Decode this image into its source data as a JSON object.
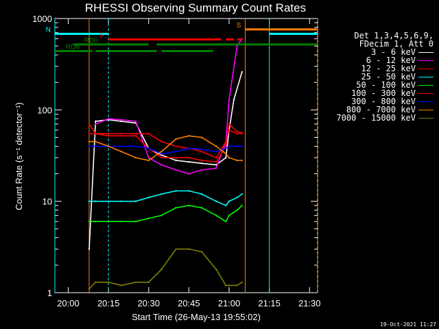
{
  "chart_data": {
    "type": "line",
    "title": "RHESSI Observing Summary Count Rates",
    "xlabel": "Start Time (26-May-13 19:55:02)",
    "ylabel": "Count Rate (s⁻¹ detector⁻¹)",
    "xlim": [
      19.917,
      21.55
    ],
    "ylim": [
      1,
      1000
    ],
    "yscale": "log",
    "x_ticks": [
      {
        "t": 20.0,
        "label": "20:00"
      },
      {
        "t": 20.25,
        "label": "20:15"
      },
      {
        "t": 20.5,
        "label": "20:30"
      },
      {
        "t": 20.75,
        "label": "20:45"
      },
      {
        "t": 21.0,
        "label": "21:00"
      },
      {
        "t": 21.25,
        "label": "21:15"
      },
      {
        "t": 21.5,
        "label": "21:30"
      }
    ],
    "y_ticks": [
      {
        "v": 1,
        "label": "1"
      },
      {
        "v": 10,
        "label": "10"
      },
      {
        "v": 100,
        "label": "100"
      },
      {
        "v": 1000,
        "label": "1000"
      }
    ],
    "legend_header": [
      "Det 1,3,4,5,6,9,",
      "FDecim 1, Att 0"
    ],
    "series": [
      {
        "name": "3 - 6 keV",
        "color": "#ffffff",
        "points": [
          [
            20.13,
            3.0
          ],
          [
            20.17,
            75
          ],
          [
            20.25,
            78
          ],
          [
            20.33,
            75
          ],
          [
            20.42,
            72
          ],
          [
            20.5,
            38
          ],
          [
            20.58,
            32
          ],
          [
            20.67,
            28
          ],
          [
            20.75,
            27
          ],
          [
            20.83,
            26
          ],
          [
            20.92,
            25
          ],
          [
            20.98,
            30
          ],
          [
            21.0,
            60
          ],
          [
            21.03,
            130
          ],
          [
            21.08,
            260
          ]
        ]
      },
      {
        "name": "6 - 12 keV",
        "color": "#ff00ff",
        "points": [
          [
            20.17,
            70
          ],
          [
            20.25,
            80
          ],
          [
            20.33,
            78
          ],
          [
            20.42,
            75
          ],
          [
            20.5,
            30
          ],
          [
            20.58,
            25
          ],
          [
            20.67,
            22
          ],
          [
            20.75,
            20
          ],
          [
            20.83,
            22
          ],
          [
            20.92,
            23
          ],
          [
            20.98,
            45
          ],
          [
            21.0,
            130
          ],
          [
            21.05,
            500
          ],
          [
            21.08,
            600
          ]
        ]
      },
      {
        "name": "12 - 25 keV",
        "color": "#ff0000",
        "points": [
          [
            20.13,
            70
          ],
          [
            20.17,
            55
          ],
          [
            20.25,
            52
          ],
          [
            20.33,
            52
          ],
          [
            20.42,
            52
          ],
          [
            20.5,
            38
          ],
          [
            20.58,
            30
          ],
          [
            20.67,
            30
          ],
          [
            20.75,
            30
          ],
          [
            20.83,
            28
          ],
          [
            20.92,
            27
          ],
          [
            20.98,
            40
          ],
          [
            21.0,
            70
          ],
          [
            21.05,
            58
          ],
          [
            21.08,
            56
          ]
        ]
      },
      {
        "name": "25 - 50 keV",
        "color": "#00ffff",
        "points": [
          [
            20.13,
            10
          ],
          [
            20.17,
            10
          ],
          [
            20.25,
            10
          ],
          [
            20.33,
            10
          ],
          [
            20.42,
            10
          ],
          [
            20.5,
            11
          ],
          [
            20.58,
            12
          ],
          [
            20.67,
            13
          ],
          [
            20.75,
            13
          ],
          [
            20.83,
            12
          ],
          [
            20.92,
            10
          ],
          [
            20.98,
            9
          ],
          [
            21.0,
            10
          ],
          [
            21.05,
            11
          ],
          [
            21.08,
            12
          ]
        ]
      },
      {
        "name": "50 - 100 keV",
        "color": "#00ff00",
        "points": [
          [
            20.13,
            6
          ],
          [
            20.17,
            6
          ],
          [
            20.25,
            6
          ],
          [
            20.33,
            6
          ],
          [
            20.42,
            6
          ],
          [
            20.5,
            6.5
          ],
          [
            20.58,
            7
          ],
          [
            20.67,
            8.5
          ],
          [
            20.75,
            9
          ],
          [
            20.83,
            8.5
          ],
          [
            20.92,
            7
          ],
          [
            20.98,
            6
          ],
          [
            21.0,
            7
          ],
          [
            21.05,
            8
          ],
          [
            21.08,
            9
          ]
        ]
      },
      {
        "name": "100 - 300 keV",
        "color": "#ff0000",
        "points": [
          [
            20.13,
            55
          ],
          [
            20.17,
            55
          ],
          [
            20.25,
            55
          ],
          [
            20.33,
            55
          ],
          [
            20.42,
            55
          ],
          [
            20.5,
            55
          ],
          [
            20.58,
            45
          ],
          [
            20.67,
            40
          ],
          [
            20.75,
            38
          ],
          [
            20.83,
            35
          ],
          [
            20.92,
            30
          ],
          [
            20.98,
            45
          ],
          [
            21.0,
            60
          ],
          [
            21.05,
            55
          ],
          [
            21.08,
            55
          ]
        ]
      },
      {
        "name": "300 - 800 keV",
        "color": "#0000ff",
        "points": [
          [
            20.13,
            40
          ],
          [
            20.17,
            40
          ],
          [
            20.25,
            40
          ],
          [
            20.33,
            40
          ],
          [
            20.42,
            40
          ],
          [
            20.5,
            38
          ],
          [
            20.58,
            33
          ],
          [
            20.67,
            35
          ],
          [
            20.75,
            38
          ],
          [
            20.83,
            37
          ],
          [
            20.92,
            35
          ],
          [
            20.98,
            38
          ],
          [
            21.0,
            40
          ],
          [
            21.05,
            40
          ],
          [
            21.08,
            40
          ]
        ]
      },
      {
        "name": "800 - 7000 keV",
        "color": "#ff8000",
        "points": [
          [
            20.13,
            45
          ],
          [
            20.17,
            45
          ],
          [
            20.25,
            40
          ],
          [
            20.33,
            35
          ],
          [
            20.42,
            30
          ],
          [
            20.5,
            28
          ],
          [
            20.58,
            35
          ],
          [
            20.67,
            48
          ],
          [
            20.75,
            52
          ],
          [
            20.83,
            50
          ],
          [
            20.92,
            40
          ],
          [
            20.98,
            33
          ],
          [
            21.0,
            30
          ],
          [
            21.05,
            28
          ],
          [
            21.08,
            28
          ]
        ]
      },
      {
        "name": "7000 - 15000 keV",
        "color": "#808000",
        "points": [
          [
            20.13,
            1.1
          ],
          [
            20.17,
            1.3
          ],
          [
            20.25,
            1.3
          ],
          [
            20.33,
            1.2
          ],
          [
            20.42,
            1.3
          ],
          [
            20.5,
            1.3
          ],
          [
            20.58,
            1.8
          ],
          [
            20.67,
            3.0
          ],
          [
            20.75,
            3.0
          ],
          [
            20.83,
            2.8
          ],
          [
            20.92,
            1.8
          ],
          [
            20.98,
            1.2
          ],
          [
            21.0,
            1.2
          ],
          [
            21.05,
            1.2
          ],
          [
            21.08,
            1.3
          ]
        ]
      }
    ],
    "flag_bars": [
      {
        "label": "N",
        "color": "#00ffff",
        "segments": [
          [
            19.917,
            20.25
          ],
          [
            21.25,
            21.55
          ]
        ],
        "level": 680
      },
      {
        "label": "F",
        "color": "#ff0000",
        "segments": [
          [
            20.25,
            20.95
          ],
          [
            20.98,
            21.03
          ],
          [
            21.05,
            21.08
          ]
        ],
        "level": 590
      },
      {
        "label": "S",
        "color": "#ff8000",
        "segments": [
          [
            21.1,
            21.55
          ]
        ],
        "level": 760
      },
      {
        "label": "RD0",
        "color": "#008000",
        "segments": [
          [
            20.03,
            20.5
          ],
          [
            20.55,
            21.55
          ]
        ],
        "level": 520
      },
      {
        "label": "RD6",
        "color": "#008000",
        "segments": [
          [
            19.917,
            20.15
          ],
          [
            20.17,
            20.55
          ],
          [
            20.58,
            20.9
          ]
        ],
        "level": 440
      }
    ],
    "vertical_markers": [
      {
        "t": 19.917,
        "color": "#00ffff",
        "style": "solid"
      },
      {
        "t": 20.13,
        "color": "#ff8000",
        "style": "solid"
      },
      {
        "t": 20.25,
        "color": "#00ffff",
        "style": "dashed"
      },
      {
        "t": 21.1,
        "color": "#ff8000",
        "style": "solid"
      },
      {
        "t": 21.25,
        "color": "#00ffff",
        "style": "solid"
      },
      {
        "t": 21.55,
        "color": "#ff8000",
        "style": "dashed"
      }
    ],
    "grid": false
  },
  "timestamp": "19-Oct-2021 11:27"
}
